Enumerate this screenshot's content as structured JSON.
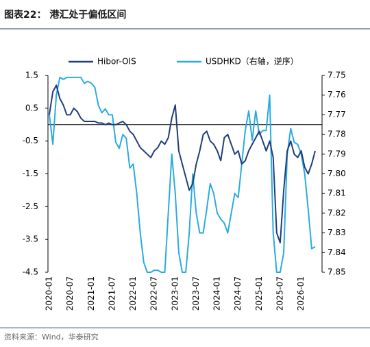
{
  "chart_data": {
    "type": "line",
    "title": "图表22： 港汇处于偏低区间",
    "source": "资料来源：Wind，华泰研究",
    "x": [
      "2020-01",
      "2020-02",
      "2020-03",
      "2020-04",
      "2020-05",
      "2020-06",
      "2020-07",
      "2020-08",
      "2020-09",
      "2020-10",
      "2020-11",
      "2020-12",
      "2021-01",
      "2021-02",
      "2021-03",
      "2021-04",
      "2021-05",
      "2021-06",
      "2021-07",
      "2021-08",
      "2021-09",
      "2021-10",
      "2021-11",
      "2021-12",
      "2022-01",
      "2022-02",
      "2022-03",
      "2022-04",
      "2022-05",
      "2022-06",
      "2022-07",
      "2022-08",
      "2022-09",
      "2022-10",
      "2022-11",
      "2022-12",
      "2023-01",
      "2023-02",
      "2023-03",
      "2023-04",
      "2023-05",
      "2023-06",
      "2023-07",
      "2023-08",
      "2023-09",
      "2023-10",
      "2023-11",
      "2023-12",
      "2024-01",
      "2024-02",
      "2024-03",
      "2024-04",
      "2024-05",
      "2024-06",
      "2024-07",
      "2024-08",
      "2024-09",
      "2024-10",
      "2024-11",
      "2024-12",
      "2025-01",
      "2025-02",
      "2025-03",
      "2025-04",
      "2025-05",
      "2025-06",
      "2025-07",
      "2025-08",
      "2025-09",
      "2025-10",
      "2025-11",
      "2025-12",
      "2026-01",
      "2026-02",
      "2026-03",
      "2026-04",
      "2026-05"
    ],
    "xticks": [
      "2020-01",
      "2020-07",
      "2021-01",
      "2021-07",
      "2022-01",
      "2022-07",
      "2023-01",
      "2023-07",
      "2024-01",
      "2024-07",
      "2025-01",
      "2025-07",
      "2026-01"
    ],
    "ylim": [
      -4.5,
      1.5
    ],
    "yticks": [
      1.5,
      0.5,
      -0.5,
      -1.5,
      -2.5,
      -3.5,
      -4.5
    ],
    "y2lim": [
      7.85,
      7.75
    ],
    "y2_reversed": true,
    "y2ticks": [
      7.75,
      7.76,
      7.77,
      7.78,
      7.79,
      {
        "value": 7.8,
        "label": "7.80"
      },
      7.81,
      7.82,
      7.83,
      7.84,
      7.85
    ],
    "grid": false,
    "series": [
      {
        "name": "Hibor-OIS",
        "color": "#1f3d7a",
        "values": [
          0.3,
          1.0,
          1.2,
          0.8,
          0.6,
          0.3,
          0.3,
          0.5,
          0.4,
          0.2,
          0.1,
          0.1,
          0.1,
          0.1,
          0.05,
          0.05,
          0.0,
          0.05,
          0.0,
          0.0,
          0.05,
          0.1,
          0.0,
          -0.2,
          -0.3,
          -0.5,
          -0.7,
          -0.8,
          -0.9,
          -1.0,
          -0.8,
          -0.7,
          -0.5,
          -0.6,
          -0.4,
          0.2,
          0.6,
          -0.8,
          -1.2,
          -1.6,
          -2.0,
          -1.8,
          -1.2,
          -0.8,
          -0.3,
          -0.2,
          -0.5,
          -0.6,
          -0.8,
          -1.1,
          -0.4,
          -0.3,
          -0.6,
          -0.9,
          -0.8,
          -1.2,
          -1.1,
          -0.8,
          -0.6,
          -0.4,
          -0.2,
          -0.5,
          -0.8,
          -0.5,
          -1.0,
          -3.3,
          -3.6,
          -2.0,
          -0.8,
          -0.5,
          -0.9,
          -1.0,
          -0.8,
          -1.3,
          -1.5,
          -1.2,
          -0.8
        ]
      },
      {
        "name": "USDHKD（右轴，逆序）",
        "color": "#29abe2",
        "axis": "y2",
        "values": [
          7.77,
          7.785,
          7.76,
          7.751,
          7.752,
          7.751,
          7.751,
          7.751,
          7.751,
          7.751,
          7.754,
          7.753,
          7.754,
          7.756,
          7.765,
          7.769,
          7.767,
          7.77,
          7.77,
          7.784,
          7.787,
          7.78,
          7.782,
          7.797,
          7.795,
          7.81,
          7.83,
          7.845,
          7.85,
          7.85,
          7.849,
          7.849,
          7.85,
          7.85,
          7.82,
          7.79,
          7.81,
          7.84,
          7.85,
          7.85,
          7.83,
          7.8,
          7.82,
          7.83,
          7.83,
          7.818,
          7.805,
          7.81,
          7.82,
          7.823,
          7.825,
          7.83,
          7.82,
          7.81,
          7.812,
          7.795,
          7.778,
          7.768,
          7.783,
          7.768,
          7.78,
          7.778,
          7.778,
          7.76,
          7.83,
          7.85,
          7.85,
          7.84,
          7.79,
          7.777,
          7.784,
          7.785,
          7.79,
          7.8,
          7.818,
          7.838,
          7.837
        ]
      }
    ]
  }
}
